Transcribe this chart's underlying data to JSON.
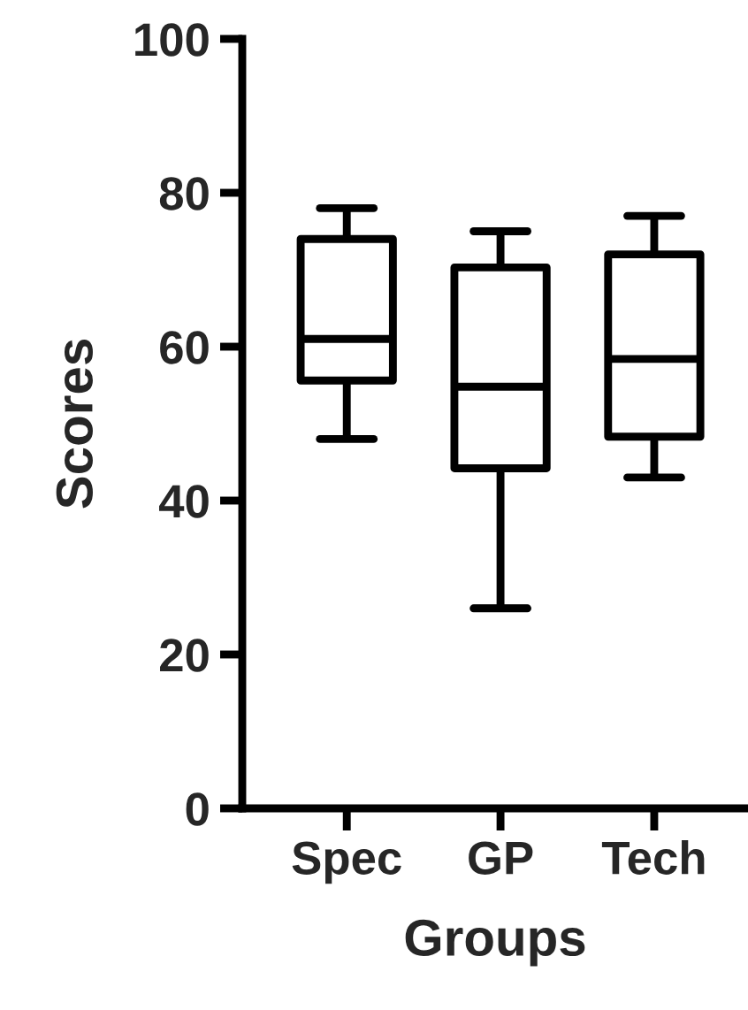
{
  "chart_data": {
    "type": "box",
    "xlabel": "Groups",
    "ylabel": "Scores",
    "categories": [
      "Spec",
      "GP",
      "Tech"
    ],
    "boxes": [
      {
        "low": 48,
        "q1": 55.6,
        "median": 61,
        "q3": 74,
        "high": 78
      },
      {
        "low": 26,
        "q1": 44.2,
        "median": 54.8,
        "q3": 70.3,
        "high": 75
      },
      {
        "low": 43,
        "q1": 48.3,
        "median": 58.4,
        "q3": 72,
        "high": 77
      }
    ],
    "color": "#000000",
    "ylim": [
      0,
      100
    ],
    "yticks": [
      0,
      20,
      40,
      60,
      80,
      100
    ],
    "grid": false
  }
}
